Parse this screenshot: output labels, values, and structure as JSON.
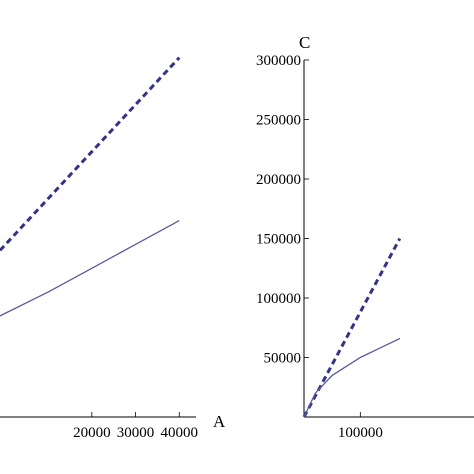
{
  "chart_data": [
    {
      "type": "line",
      "panel": "left",
      "xlabel": "A",
      "ylabel": "",
      "xlim": [
        -1000,
        42000
      ],
      "ylim": [
        0,
        300000
      ],
      "x_ticks": [
        20000,
        30000,
        40000
      ],
      "x_tick_labels": [
        "20000",
        "30000",
        "40000"
      ],
      "series": [
        {
          "style": "dashed",
          "color": "#33338a",
          "points": [
            [
              -1000,
              140000
            ],
            [
              40000,
              302000
            ]
          ]
        },
        {
          "style": "solid",
          "color": "#5a5aa0",
          "points": [
            [
              -1000,
              85000
            ],
            [
              10000,
              105000
            ],
            [
              20000,
              125000
            ],
            [
              30000,
              145000
            ],
            [
              40000,
              165000
            ]
          ]
        }
      ]
    },
    {
      "type": "line",
      "panel": "right",
      "xlabel": "",
      "ylabel": "C",
      "xlim": [
        0,
        300000
      ],
      "ylim": [
        0,
        300000
      ],
      "x_ticks": [
        100000
      ],
      "x_tick_labels": [
        "100000"
      ],
      "y_ticks": [
        50000,
        100000,
        150000,
        200000,
        250000,
        300000
      ],
      "y_tick_labels": [
        "50000",
        "100000",
        "150000",
        "200000",
        "250000",
        "300000"
      ],
      "series": [
        {
          "style": "dashed",
          "color": "#33338a",
          "points": [
            [
              0,
              0
            ],
            [
              170000,
              150000
            ]
          ]
        },
        {
          "style": "solid",
          "color": "#5a5aa0",
          "points": [
            [
              0,
              0
            ],
            [
              20000,
              20000
            ],
            [
              50000,
              35000
            ],
            [
              100000,
              50000
            ],
            [
              170000,
              66000
            ]
          ]
        }
      ]
    }
  ]
}
